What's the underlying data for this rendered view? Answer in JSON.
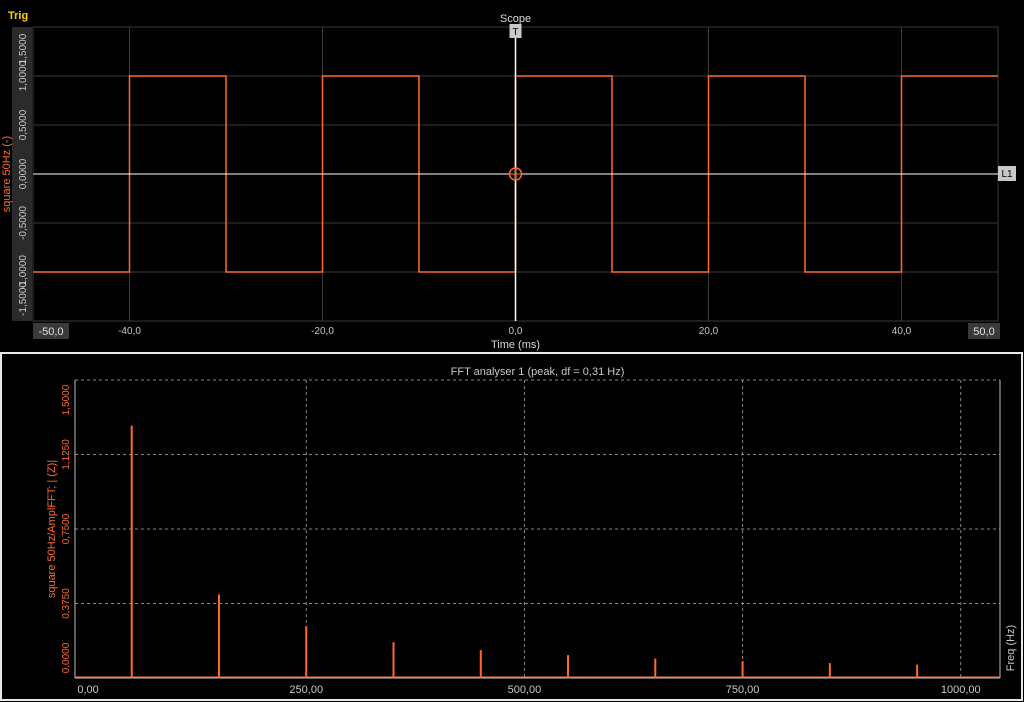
{
  "scope": {
    "trig_label": "Trig",
    "title": "Scope",
    "ylabel": "square 50Hz (-)",
    "xlabel": "Time (ms)",
    "trigger_marker": "T",
    "level_marker": "L1",
    "xmin_label": "-50,0",
    "xmax_label": "50,0",
    "x_ticks": [
      {
        "v": -40,
        "label": "-40,0"
      },
      {
        "v": -20,
        "label": "-20,0"
      },
      {
        "v": 0,
        "label": "0,0"
      },
      {
        "v": 20,
        "label": "20,0"
      },
      {
        "v": 40,
        "label": "40,0"
      }
    ],
    "y_ticks": [
      {
        "v": 1.5,
        "label": "1,5000"
      },
      {
        "v": 1.0,
        "label": "1,0000"
      },
      {
        "v": 0.5,
        "label": "0,5000"
      },
      {
        "v": 0.0,
        "label": "0,0000"
      },
      {
        "v": -0.5,
        "label": "-0,5000"
      },
      {
        "v": -1.0,
        "label": "-1,0000"
      },
      {
        "v": -1.5,
        "label": "-1,5000"
      }
    ],
    "colors": {
      "trace": "#ff6a2a",
      "grid": "#3a3a3a",
      "label": "#ff6a2a",
      "trig": "#ffd200",
      "axis": "#ffffff"
    }
  },
  "fft": {
    "title": "FFT analyser 1 (peak, df = 0,31 Hz)",
    "ylabel": "square 50Hz/AmplFFT; | (Z)|",
    "xlabel": "Freq (Hz)",
    "x_ticks": [
      {
        "v": 0,
        "label": "0,00"
      },
      {
        "v": 250,
        "label": "250,00"
      },
      {
        "v": 500,
        "label": "500,00"
      },
      {
        "v": 750,
        "label": "750,00"
      },
      {
        "v": 1000,
        "label": "1000,00"
      }
    ],
    "y_ticks": [
      {
        "v": 0.0,
        "label": "0,0000"
      },
      {
        "v": 0.375,
        "label": "0,3750"
      },
      {
        "v": 0.75,
        "label": "0,7500"
      },
      {
        "v": 1.125,
        "label": "1,1250"
      },
      {
        "v": 1.5,
        "label": "1,5000"
      }
    ],
    "colors": {
      "trace": "#ff6a2a",
      "grid": "#8a8a8a"
    }
  },
  "chart_data": [
    {
      "type": "line",
      "title": "Scope",
      "xlabel": "Time (ms)",
      "ylabel": "square 50Hz (-)",
      "xlim": [
        -50,
        50
      ],
      "ylim": [
        -1.5,
        1.5
      ],
      "grid": true,
      "series": [
        {
          "name": "square 50Hz",
          "x": [
            -50,
            -40,
            -40,
            -30,
            -30,
            -20,
            -20,
            -10,
            -10,
            0,
            0,
            10,
            10,
            20,
            20,
            30,
            30,
            40,
            40,
            50
          ],
          "y": [
            -1,
            -1,
            1,
            1,
            -1,
            -1,
            1,
            1,
            -1,
            -1,
            1,
            1,
            -1,
            -1,
            1,
            1,
            -1,
            -1,
            1,
            1
          ]
        }
      ]
    },
    {
      "type": "bar",
      "title": "FFT analyser 1 (peak, df = 0,31 Hz)",
      "xlabel": "Freq (Hz)",
      "ylabel": "square 50Hz/AmplFFT; | (Z)|",
      "xlim": [
        -15,
        1045
      ],
      "ylim": [
        0,
        1.5
      ],
      "grid": true,
      "series": [
        {
          "name": "square 50Hz/AmplFFT",
          "x": [
            50,
            150,
            250,
            350,
            450,
            550,
            650,
            750,
            850,
            950
          ],
          "y": [
            1.27,
            0.42,
            0.26,
            0.18,
            0.14,
            0.115,
            0.098,
            0.085,
            0.075,
            0.067
          ]
        }
      ]
    }
  ]
}
